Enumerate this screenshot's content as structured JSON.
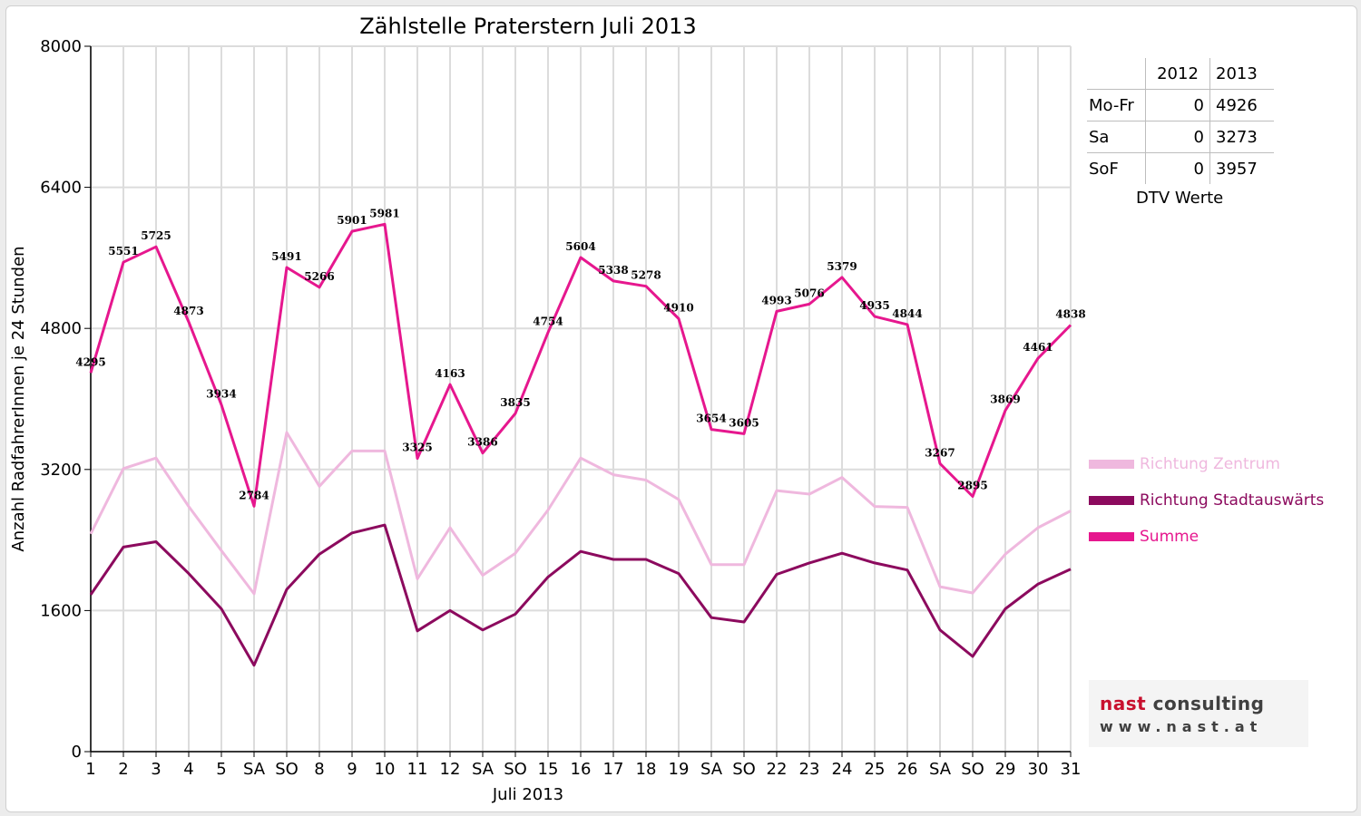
{
  "chart_data": {
    "type": "line",
    "title": "Zählstelle Praterstern Juli 2013",
    "xlabel": "Juli 2013",
    "ylabel": "Anzahl RadfahrerInnen je 24 Stunden",
    "ylim": [
      0,
      8000
    ],
    "yticks": [
      0,
      1600,
      3200,
      4800,
      6400,
      8000
    ],
    "grid": true,
    "legend_position": "right",
    "categories": [
      "1",
      "2",
      "3",
      "4",
      "5",
      "SA",
      "SO",
      "8",
      "9",
      "10",
      "11",
      "12",
      "SA",
      "SO",
      "15",
      "16",
      "17",
      "18",
      "19",
      "SA",
      "SO",
      "22",
      "23",
      "24",
      "25",
      "26",
      "SA",
      "SO",
      "29",
      "30",
      "31"
    ],
    "weekend_color": "#e00000",
    "series": [
      {
        "name": "Richtung Zentrum",
        "color": "#efb8de",
        "values": [
          2470,
          3210,
          3330,
          2780,
          2280,
          1790,
          3620,
          3010,
          3410,
          3410,
          1960,
          2540,
          2000,
          2250,
          2740,
          3330,
          3140,
          3080,
          2860,
          2120,
          2120,
          2960,
          2920,
          3110,
          2780,
          2770,
          1870,
          1800,
          2240,
          2540,
          2730
        ]
      },
      {
        "name": "Richtung Stadtauswärts",
        "color": "#8c0a5e",
        "values": [
          1780,
          2320,
          2380,
          2020,
          1620,
          980,
          1840,
          2240,
          2480,
          2570,
          1370,
          1600,
          1380,
          1560,
          1980,
          2270,
          2180,
          2180,
          2020,
          1520,
          1470,
          2010,
          2140,
          2250,
          2140,
          2060,
          1380,
          1080,
          1620,
          1900,
          2070
        ]
      },
      {
        "name": "Summe",
        "color": "#e6178e",
        "values": [
          4295,
          5551,
          5725,
          4873,
          3934,
          2784,
          5491,
          5266,
          5901,
          5981,
          3325,
          4163,
          3386,
          3835,
          4754,
          5604,
          5338,
          5278,
          4910,
          3654,
          3605,
          4993,
          5076,
          5379,
          4935,
          4844,
          3267,
          2895,
          3869,
          4461,
          4838
        ]
      }
    ],
    "data_labels": [
      "4295",
      "5551",
      "5725",
      "4873",
      "3934",
      "2784",
      "5491",
      "5266",
      "5901",
      "5981",
      "3325",
      "4163",
      "3386",
      "3835",
      "4754",
      "5604",
      "5338",
      "5278",
      "4910",
      "3654",
      "3605",
      "4993",
      "5076",
      "5379",
      "4935",
      "4844",
      "3267",
      "2895",
      "3869",
      "4461",
      "4838"
    ]
  },
  "dtv": {
    "headers": [
      "",
      "2012",
      "2013"
    ],
    "rows": [
      {
        "label": "Mo-Fr",
        "v2012": "0",
        "v2013": "4926"
      },
      {
        "label": "Sa",
        "v2012": "0",
        "v2013": "3273"
      },
      {
        "label": "SoF",
        "v2012": "0",
        "v2013": "3957"
      }
    ],
    "caption": "DTV Werte"
  },
  "logo": {
    "name_part1": "nast",
    "name_part2": " consulting",
    "url": "www.nast.at",
    "color_red": "#c8102e",
    "color_grey": "#404040"
  }
}
